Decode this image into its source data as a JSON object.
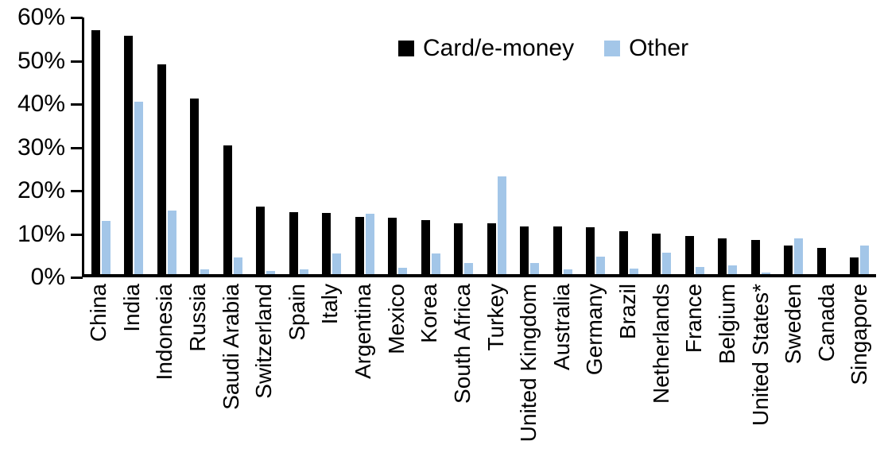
{
  "chart_data": {
    "type": "bar",
    "title": "",
    "xlabel": "",
    "ylabel": "",
    "ylim": [
      0,
      60
    ],
    "y_tick_step": 10,
    "y_ticks": [
      "0%",
      "10%",
      "20%",
      "30%",
      "40%",
      "50%",
      "60%"
    ],
    "grid": false,
    "legend_position": "top-center",
    "unit": "percent",
    "categories": [
      "China",
      "India",
      "Indonesia",
      "Russia",
      "Saudi Arabia",
      "Switzerland",
      "Spain",
      "Italy",
      "Argentina",
      "Mexico",
      "Korea",
      "South Africa",
      "Turkey",
      "United Kingdom",
      "Australia",
      "Germany",
      "Brazil",
      "Netherlands",
      "France",
      "Belgium",
      "United States*",
      "Sweden",
      "Canada",
      "Singapore"
    ],
    "series": [
      {
        "name": "Card/e-money",
        "color": "#000000",
        "values": [
          56.4,
          55.1,
          48.4,
          40.5,
          29.8,
          15.6,
          14.3,
          14.1,
          13.3,
          13.0,
          12.4,
          11.8,
          11.7,
          11.1,
          11.0,
          10.8,
          10.0,
          9.4,
          8.8,
          8.3,
          7.9,
          6.6,
          6.0,
          3.9
        ]
      },
      {
        "name": "Other",
        "color": "#A3C6E8",
        "values": [
          12.3,
          39.8,
          14.6,
          1.1,
          3.9,
          0.8,
          1.1,
          4.7,
          13.9,
          1.5,
          4.8,
          2.6,
          22.6,
          2.5,
          1.1,
          4.1,
          1.3,
          5.0,
          1.7,
          2.1,
          0.3,
          8.2,
          0,
          6.7
        ]
      }
    ]
  },
  "colors": {
    "background": "#FFFFFF",
    "axis": "#000000",
    "card_emoney": "#000000",
    "other": "#A3C6E8"
  }
}
